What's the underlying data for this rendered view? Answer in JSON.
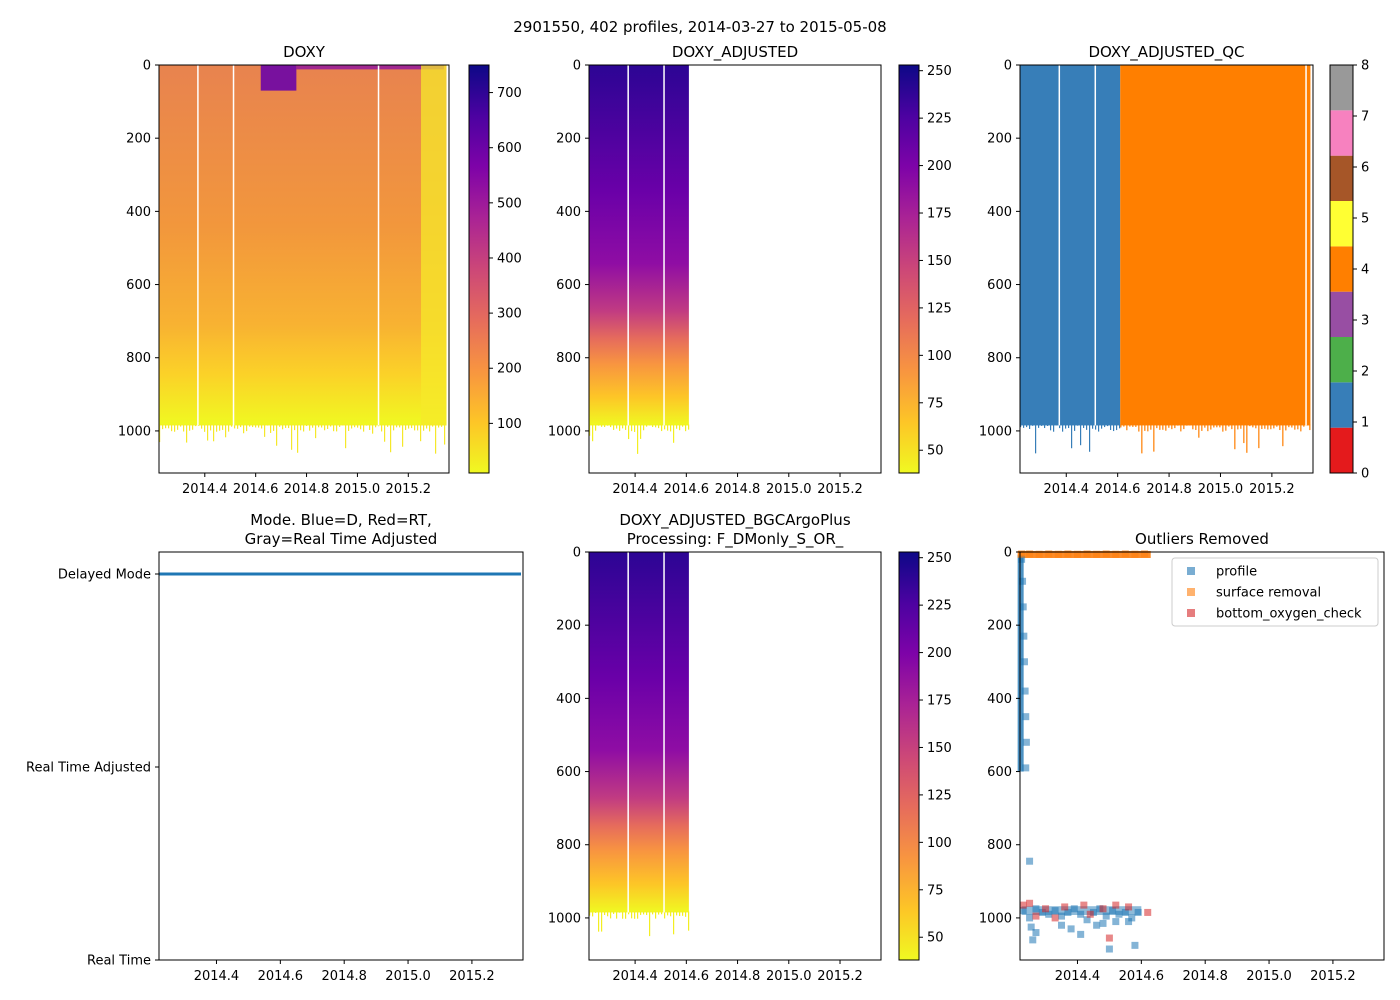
{
  "suptitle": "2901550, 402 profiles, 2014-03-27 to 2015-05-08",
  "colors": {
    "plasma": [
      "#f0f921",
      "#fdc527",
      "#f89540",
      "#e66c5c",
      "#cc4778",
      "#aa2395",
      "#7e03a8",
      "#4c02a1",
      "#0d0887"
    ],
    "blue": "#377eb8",
    "orange": "#ff7f00",
    "tab_blue": "#1f77b4",
    "tab_orange": "#ff7f0e",
    "tab_red": "#d62728"
  },
  "chart_data": [
    {
      "id": "doxy",
      "type": "heatmap",
      "title": "DOXY",
      "xlim": [
        2014.22,
        2015.36
      ],
      "xticks": [
        2014.4,
        2014.6,
        2014.8,
        2015.0,
        2015.2
      ],
      "xtick_labels": [
        "2014.4",
        "2014.6",
        "2014.8",
        "2015.0",
        "2015.2"
      ],
      "ylim": [
        1115,
        0
      ],
      "yticks": [
        0,
        200,
        400,
        600,
        800,
        1000
      ],
      "ytick_labels": [
        "0",
        "200",
        "400",
        "600",
        "800",
        "1000"
      ],
      "data_range": [
        2014.22,
        2015.35
      ],
      "bottom_depth": 985,
      "white_gaps": [
        2014.37,
        2014.51,
        2015.08
      ],
      "clim": [
        10,
        750
      ],
      "colorbar_ticks": [
        100,
        200,
        300,
        400,
        500,
        600,
        700
      ],
      "colorbar_tick_labels": [
        "100",
        "200",
        "300",
        "400",
        "500",
        "600",
        "700"
      ]
    },
    {
      "id": "doxy_adj",
      "type": "heatmap",
      "title": "DOXY_ADJUSTED",
      "xlim": [
        2014.22,
        2015.36
      ],
      "xticks": [
        2014.4,
        2014.6,
        2014.8,
        2015.0,
        2015.2
      ],
      "xtick_labels": [
        "2014.4",
        "2014.6",
        "2014.8",
        "2015.0",
        "2015.2"
      ],
      "ylim": [
        1115,
        0
      ],
      "yticks": [
        0,
        200,
        400,
        600,
        800,
        1000
      ],
      "ytick_labels": [
        "0",
        "200",
        "400",
        "600",
        "800",
        "1000"
      ],
      "data_range": [
        2014.22,
        2014.61
      ],
      "bottom_depth": 985,
      "white_gaps": [
        2014.37,
        2014.51
      ],
      "clim": [
        38,
        253
      ],
      "colorbar_ticks": [
        50,
        75,
        100,
        125,
        150,
        175,
        200,
        225,
        250
      ],
      "colorbar_tick_labels": [
        "50",
        "75",
        "100",
        "125",
        "150",
        "175",
        "200",
        "225",
        "250"
      ]
    },
    {
      "id": "doxy_adj_qc",
      "type": "heatmap",
      "title": "DOXY_ADJUSTED_QC",
      "xlim": [
        2014.22,
        2015.36
      ],
      "xticks": [
        2014.4,
        2014.6,
        2014.8,
        2015.0,
        2015.2
      ],
      "xtick_labels": [
        "2014.4",
        "2014.6",
        "2014.8",
        "2015.0",
        "2015.2"
      ],
      "ylim": [
        1115,
        0
      ],
      "yticks": [
        0,
        200,
        400,
        600,
        800,
        1000
      ],
      "ytick_labels": [
        "0",
        "200",
        "400",
        "600",
        "800",
        "1000"
      ],
      "segments": [
        {
          "from": 2014.22,
          "to": 2014.61,
          "qc": 1
        },
        {
          "from": 2014.61,
          "to": 2015.35,
          "qc": 4
        }
      ],
      "white_gaps": [
        2014.37,
        2014.51,
        2015.33
      ],
      "qc_colors": [
        "#e41a1c",
        "#377eb8",
        "#4daf4a",
        "#984ea3",
        "#ff7f00",
        "#ffff33",
        "#a65628",
        "#f781bf",
        "#999999"
      ],
      "colorbar_ticks": [
        0,
        1,
        2,
        3,
        4,
        5,
        6,
        7,
        8
      ],
      "colorbar_tick_labels": [
        "0",
        "1",
        "2",
        "3",
        "4",
        "5",
        "6",
        "7",
        "8"
      ]
    },
    {
      "id": "mode",
      "type": "line",
      "title_line1": "Mode. Blue=D, Red=RT,",
      "title_line2": "Gray=Real Time Adjusted",
      "xlim": [
        2014.22,
        2015.36
      ],
      "xticks": [
        2014.4,
        2014.6,
        2014.8,
        2015.0,
        2015.2
      ],
      "xtick_labels": [
        "2014.4",
        "2014.6",
        "2014.8",
        "2015.0",
        "2015.2"
      ],
      "y_categories": [
        "Delayed Mode",
        "Real Time Adjusted",
        "Real Time"
      ],
      "series": [
        {
          "name": "Delayed Mode",
          "x_range": [
            2014.22,
            2015.36
          ],
          "y": "Delayed Mode"
        }
      ]
    },
    {
      "id": "bgc",
      "type": "heatmap",
      "title_line1": "DOXY_ADJUSTED_BGCArgoPlus",
      "title_line2": "Processing: F_DMonly_S_OR_",
      "xlim": [
        2014.22,
        2015.36
      ],
      "xticks": [
        2014.4,
        2014.6,
        2014.8,
        2015.0,
        2015.2
      ],
      "xtick_labels": [
        "2014.4",
        "2014.6",
        "2014.8",
        "2015.0",
        "2015.2"
      ],
      "ylim": [
        1115,
        0
      ],
      "yticks": [
        0,
        200,
        400,
        600,
        800,
        1000
      ],
      "ytick_labels": [
        "0",
        "200",
        "400",
        "600",
        "800",
        "1000"
      ],
      "data_range": [
        2014.22,
        2014.61
      ],
      "bottom_depth": 985,
      "white_gaps": [
        2014.37,
        2014.51
      ],
      "clim": [
        38,
        253
      ],
      "colorbar_ticks": [
        50,
        75,
        100,
        125,
        150,
        175,
        200,
        225,
        250
      ],
      "colorbar_tick_labels": [
        "50",
        "75",
        "100",
        "125",
        "150",
        "175",
        "200",
        "225",
        "250"
      ]
    },
    {
      "id": "outliers",
      "type": "scatter",
      "title": "Outliers Removed",
      "xlim": [
        2014.22,
        2015.36
      ],
      "xticks": [
        2014.4,
        2014.6,
        2014.8,
        2015.0,
        2015.2
      ],
      "xtick_labels": [
        "2014.4",
        "2014.6",
        "2014.8",
        "2015.0",
        "2015.2"
      ],
      "ylim": [
        1115,
        0
      ],
      "yticks": [
        0,
        200,
        400,
        600,
        800,
        1000
      ],
      "ytick_labels": [
        "0",
        "200",
        "400",
        "600",
        "800",
        "1000"
      ],
      "legend_position": "upper right",
      "series": [
        {
          "name": "profile",
          "points": [
            [
              2014.225,
              20
            ],
            [
              2014.228,
              80
            ],
            [
              2014.23,
              150
            ],
            [
              2014.232,
              230
            ],
            [
              2014.234,
              300
            ],
            [
              2014.236,
              380
            ],
            [
              2014.238,
              450
            ],
            [
              2014.24,
              520
            ],
            [
              2014.238,
              590
            ],
            [
              2014.25,
              845
            ],
            [
              2014.23,
              980
            ],
            [
              2014.25,
              1000
            ],
            [
              2014.27,
              975
            ],
            [
              2014.29,
              985
            ],
            [
              2014.31,
              990
            ],
            [
              2014.33,
              980
            ],
            [
              2014.35,
              995
            ],
            [
              2014.37,
              985
            ],
            [
              2014.39,
              975
            ],
            [
              2014.41,
              990
            ],
            [
              2014.43,
              1005
            ],
            [
              2014.45,
              985
            ],
            [
              2014.47,
              975
            ],
            [
              2014.49,
              995
            ],
            [
              2014.51,
              980
            ],
            [
              2014.53,
              990
            ],
            [
              2014.55,
              985
            ],
            [
              2014.57,
              1000
            ],
            [
              2014.59,
              985
            ],
            [
              2014.27,
              1040
            ],
            [
              2014.35,
              1020
            ],
            [
              2014.41,
              1045
            ],
            [
              2014.48,
              1015
            ],
            [
              2014.52,
              1010
            ],
            [
              2014.58,
              1075
            ],
            [
              2014.255,
              1025
            ],
            [
              2014.26,
              1060
            ],
            [
              2014.38,
              1030
            ],
            [
              2014.46,
              1020
            ],
            [
              2014.5,
              1085
            ],
            [
              2014.56,
              1010
            ]
          ]
        },
        {
          "name": "surface removal",
          "points": [
            [
              2014.225,
              5
            ],
            [
              2014.25,
              5
            ],
            [
              2014.28,
              6
            ],
            [
              2014.31,
              5
            ],
            [
              2014.34,
              6
            ],
            [
              2014.37,
              5
            ],
            [
              2014.4,
              6
            ],
            [
              2014.43,
              5
            ],
            [
              2014.46,
              6
            ],
            [
              2014.49,
              5
            ],
            [
              2014.52,
              6
            ],
            [
              2014.55,
              5
            ],
            [
              2014.58,
              6
            ],
            [
              2014.61,
              5
            ]
          ]
        },
        {
          "name": "bottom_oxygen_check",
          "points": [
            [
              2014.23,
              965
            ],
            [
              2014.25,
              960
            ],
            [
              2014.3,
              975
            ],
            [
              2014.36,
              970
            ],
            [
              2014.42,
              965
            ],
            [
              2014.48,
              975
            ],
            [
              2014.52,
              965
            ],
            [
              2014.56,
              970
            ],
            [
              2014.62,
              985
            ],
            [
              2014.27,
              995
            ],
            [
              2014.33,
              1000
            ],
            [
              2014.44,
              990
            ],
            [
              2014.5,
              1055
            ]
          ]
        }
      ]
    }
  ]
}
